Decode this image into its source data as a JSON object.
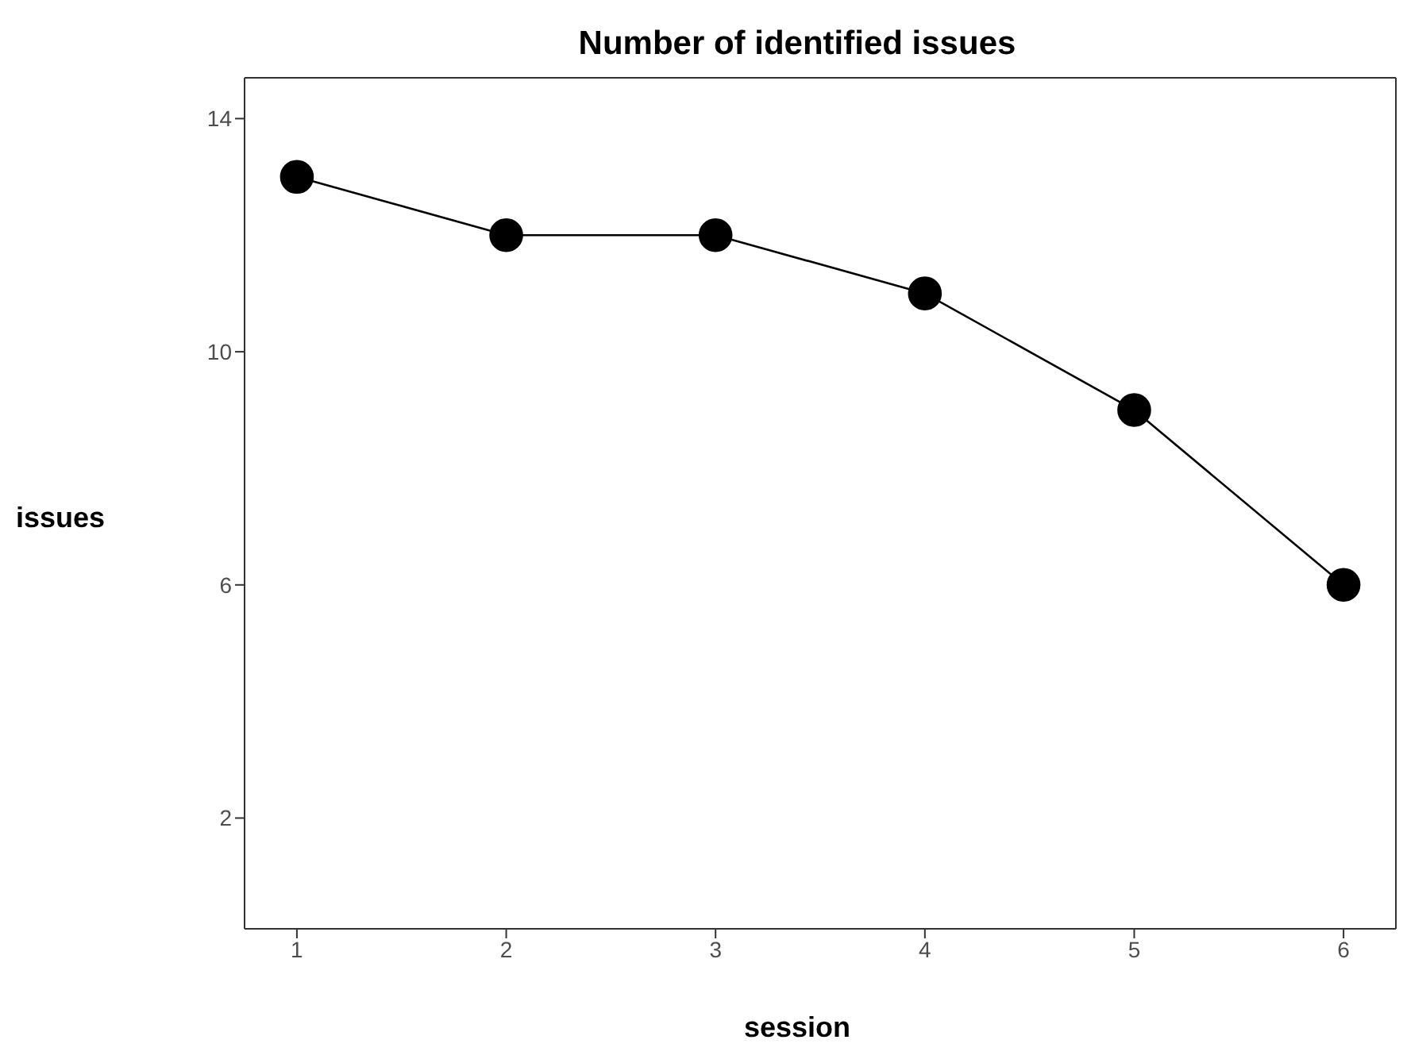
{
  "chart_data": {
    "type": "line",
    "title": "Number of identified issues",
    "xlabel": "session",
    "ylabel": "issues",
    "x": [
      1,
      2,
      3,
      4,
      5,
      6
    ],
    "series": [
      {
        "color": "#000000",
        "values": [
          13,
          12,
          12,
          11,
          9,
          6
        ]
      }
    ],
    "xlim": [
      0.75,
      6.25
    ],
    "xticks": [
      1,
      2,
      3,
      4,
      5,
      6
    ],
    "ylim": [
      0.1,
      14.7
    ],
    "yticks": [
      2,
      6,
      10,
      14
    ],
    "grid": false,
    "legend": false,
    "marker": "circle",
    "line_style": "solid"
  }
}
